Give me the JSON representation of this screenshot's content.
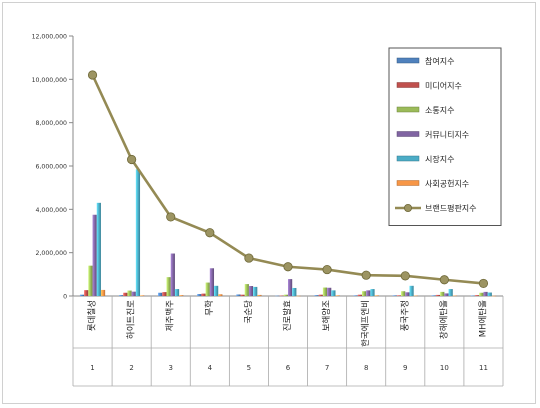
{
  "chart_data": {
    "type": "bar",
    "categories": [
      "롯데칠성",
      "하이트진로",
      "제주맥주",
      "무학",
      "국순당",
      "진로발효",
      "보해양조",
      "한국에프엔비",
      "풍국주정",
      "창해에탄올",
      "MH에탄올"
    ],
    "rank_labels": [
      "1",
      "2",
      "3",
      "4",
      "5",
      "6",
      "7",
      "8",
      "9",
      "10",
      "11"
    ],
    "ylim": [
      0,
      12000000
    ],
    "yticks": [
      "0",
      "2,000,000",
      "4,000,000",
      "6,000,000",
      "8,000,000",
      "10,000,000",
      "12,000,000"
    ],
    "ytick_values": [
      0,
      2000000,
      4000000,
      6000000,
      8000000,
      10000000,
      12000000
    ],
    "grid": false,
    "legend_position": "top-right",
    "series": [
      {
        "name": "참여지수",
        "kind": "bar",
        "color": "#4f81bd",
        "values": [
          60000,
          40000,
          150000,
          90000,
          70000,
          15000,
          40000,
          30000,
          30000,
          30000,
          20000
        ]
      },
      {
        "name": "미디어지수",
        "kind": "bar",
        "color": "#c0504d",
        "values": [
          270000,
          150000,
          180000,
          110000,
          60000,
          20000,
          60000,
          60000,
          30000,
          50000,
          40000
        ]
      },
      {
        "name": "소통지수",
        "kind": "bar",
        "color": "#9bbb59",
        "values": [
          1400000,
          250000,
          870000,
          620000,
          550000,
          60000,
          390000,
          220000,
          220000,
          190000,
          150000
        ]
      },
      {
        "name": "커뮤니티지수",
        "kind": "bar",
        "color": "#8064a2",
        "values": [
          3750000,
          200000,
          1960000,
          1280000,
          460000,
          780000,
          380000,
          260000,
          170000,
          120000,
          190000
        ]
      },
      {
        "name": "시장지수",
        "kind": "bar",
        "color": "#4bacc6",
        "values": [
          4300000,
          5850000,
          320000,
          470000,
          420000,
          370000,
          260000,
          320000,
          470000,
          320000,
          160000
        ]
      },
      {
        "name": "사회공헌지수",
        "kind": "bar",
        "color": "#f79646",
        "values": [
          280000,
          30000,
          40000,
          80000,
          50000,
          10000,
          30000,
          30000,
          20000,
          20000,
          10000
        ]
      },
      {
        "name": "브랜드평판지수",
        "kind": "line",
        "color": "#948a54",
        "values": [
          10200000,
          6300000,
          3650000,
          2920000,
          1750000,
          1350000,
          1220000,
          960000,
          930000,
          750000,
          580000
        ]
      }
    ]
  }
}
